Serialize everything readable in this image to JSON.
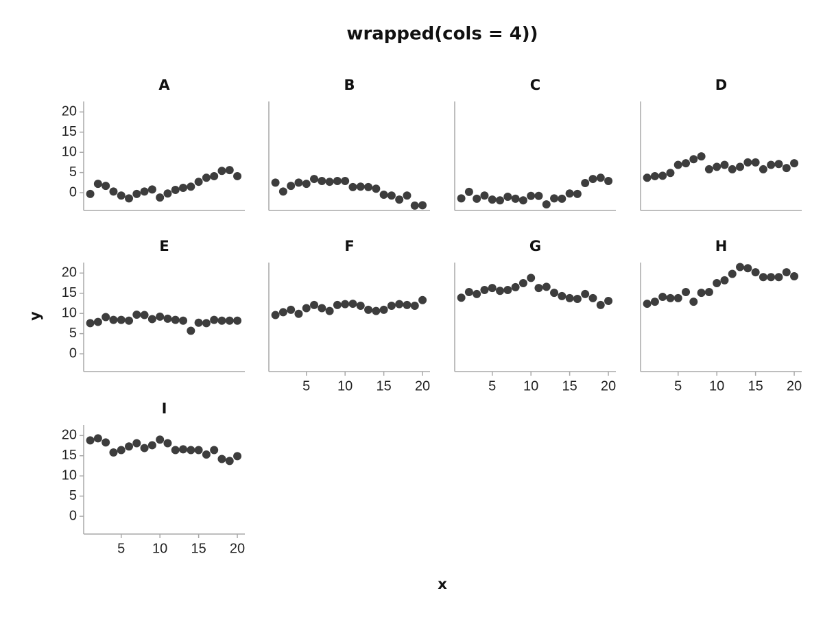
{
  "title": "wrapped(cols = 4))",
  "x_label": "x",
  "y_label": "y",
  "chart_data": [
    {
      "type": "scatter",
      "title": "A",
      "color": "#3d3d3d",
      "xlim": [
        0.15,
        20.97
      ],
      "ylim": [
        -4.4,
        22.6
      ],
      "yticks": [
        0,
        5,
        10,
        15,
        20
      ],
      "x": [
        1,
        2,
        3,
        4,
        5,
        6,
        7,
        8,
        9,
        10,
        11,
        12,
        13,
        14,
        15,
        16,
        17,
        18,
        19,
        20
      ],
      "values": [
        -0.3,
        2.2,
        1.7,
        0.3,
        -0.7,
        -1.4,
        -0.3,
        0.3,
        0.8,
        -1.2,
        -0.2,
        0.7,
        1.2,
        1.5,
        2.7,
        3.7,
        4.1,
        5.4,
        5.6,
        4.1
      ]
    },
    {
      "type": "scatter",
      "title": "B",
      "color": "#3d3d3d",
      "xlim": [
        0.15,
        20.97
      ],
      "ylim": [
        -4.4,
        22.6
      ],
      "x": [
        1,
        2,
        3,
        4,
        5,
        6,
        7,
        8,
        9,
        10,
        11,
        12,
        13,
        14,
        15,
        16,
        17,
        18,
        19,
        20
      ],
      "values": [
        2.5,
        0.3,
        1.7,
        2.5,
        2.2,
        3.4,
        2.9,
        2.7,
        2.9,
        2.9,
        1.4,
        1.5,
        1.4,
        1.0,
        -0.5,
        -0.7,
        -1.7,
        -0.7,
        -3.2,
        -3.1
      ]
    },
    {
      "type": "scatter",
      "title": "C",
      "color": "#3d3d3d",
      "xlim": [
        0.15,
        20.97
      ],
      "ylim": [
        -4.4,
        22.6
      ],
      "x": [
        1,
        2,
        3,
        4,
        5,
        6,
        7,
        8,
        9,
        10,
        11,
        12,
        13,
        14,
        15,
        16,
        17,
        18,
        19,
        20
      ],
      "values": [
        -1.4,
        0.2,
        -1.5,
        -0.7,
        -1.7,
        -1.9,
        -1.0,
        -1.5,
        -1.9,
        -0.8,
        -0.8,
        -2.9,
        -1.4,
        -1.5,
        -0.2,
        -0.3,
        2.4,
        3.4,
        3.7,
        2.9
      ]
    },
    {
      "type": "scatter",
      "title": "D",
      "color": "#3d3d3d",
      "xlim": [
        0.15,
        20.97
      ],
      "ylim": [
        -4.4,
        22.6
      ],
      "x": [
        1,
        2,
        3,
        4,
        5,
        6,
        7,
        8,
        9,
        10,
        11,
        12,
        13,
        14,
        15,
        16,
        17,
        18,
        19,
        20
      ],
      "values": [
        3.7,
        4.1,
        4.2,
        4.9,
        6.9,
        7.3,
        8.3,
        9.0,
        5.8,
        6.4,
        6.9,
        5.8,
        6.4,
        7.5,
        7.5,
        5.8,
        6.9,
        7.1,
        6.1,
        7.3
      ]
    },
    {
      "type": "scatter",
      "title": "E",
      "color": "#3d3d3d",
      "xlim": [
        0.15,
        20.97
      ],
      "ylim": [
        -4.4,
        22.6
      ],
      "yticks": [
        0,
        5,
        10,
        15,
        20
      ],
      "x": [
        1,
        2,
        3,
        4,
        5,
        6,
        7,
        8,
        9,
        10,
        11,
        12,
        13,
        14,
        15,
        16,
        17,
        18,
        19,
        20
      ],
      "values": [
        7.6,
        7.9,
        9.1,
        8.4,
        8.4,
        8.2,
        9.7,
        9.6,
        8.6,
        9.2,
        8.7,
        8.4,
        8.2,
        5.7,
        7.7,
        7.6,
        8.4,
        8.2,
        8.2,
        8.2
      ]
    },
    {
      "type": "scatter",
      "title": "F",
      "color": "#3d3d3d",
      "xlim": [
        0.15,
        20.97
      ],
      "ylim": [
        -4.4,
        22.6
      ],
      "xticks": [
        5,
        10,
        15,
        20
      ],
      "x": [
        1,
        2,
        3,
        4,
        5,
        6,
        7,
        8,
        9,
        10,
        11,
        12,
        13,
        14,
        15,
        16,
        17,
        18,
        19,
        20
      ],
      "values": [
        9.6,
        10.3,
        10.9,
        9.9,
        11.3,
        12.1,
        11.3,
        10.6,
        12.1,
        12.3,
        12.4,
        11.9,
        10.9,
        10.6,
        10.9,
        11.9,
        12.3,
        12.1,
        11.9,
        13.3
      ]
    },
    {
      "type": "scatter",
      "title": "G",
      "color": "#3d3d3d",
      "xlim": [
        0.15,
        20.97
      ],
      "ylim": [
        -4.4,
        22.6
      ],
      "xticks": [
        5,
        10,
        15,
        20
      ],
      "x": [
        1,
        2,
        3,
        4,
        5,
        6,
        7,
        8,
        9,
        10,
        11,
        12,
        13,
        14,
        15,
        16,
        17,
        18,
        19,
        20
      ],
      "values": [
        13.9,
        15.3,
        14.8,
        15.8,
        16.3,
        15.6,
        15.8,
        16.5,
        17.5,
        18.8,
        16.3,
        16.6,
        15.1,
        14.3,
        13.8,
        13.6,
        14.8,
        13.8,
        12.1,
        13.1
      ]
    },
    {
      "type": "scatter",
      "title": "H",
      "color": "#3d3d3d",
      "xlim": [
        0.15,
        20.97
      ],
      "ylim": [
        -4.4,
        22.6
      ],
      "xticks": [
        5,
        10,
        15,
        20
      ],
      "x": [
        1,
        2,
        3,
        4,
        5,
        6,
        7,
        8,
        9,
        10,
        11,
        12,
        13,
        14,
        15,
        16,
        17,
        18,
        19,
        20
      ],
      "values": [
        12.4,
        12.9,
        14.1,
        13.8,
        13.8,
        15.3,
        12.9,
        15.1,
        15.3,
        17.5,
        18.2,
        19.8,
        21.5,
        21.2,
        20.2,
        19.0,
        19.0,
        19.0,
        20.2,
        19.2
      ]
    },
    {
      "type": "scatter",
      "title": "I",
      "color": "#3d3d3d",
      "xlim": [
        0.15,
        20.97
      ],
      "ylim": [
        -4.4,
        22.6
      ],
      "yticks": [
        0,
        5,
        10,
        15,
        20
      ],
      "xticks": [
        5,
        10,
        15,
        20
      ],
      "x": [
        1,
        2,
        3,
        4,
        5,
        6,
        7,
        8,
        9,
        10,
        11,
        12,
        13,
        14,
        15,
        16,
        17,
        18,
        19,
        20
      ],
      "values": [
        18.8,
        19.3,
        18.3,
        15.8,
        16.4,
        17.3,
        18.1,
        16.9,
        17.6,
        19.0,
        18.1,
        16.4,
        16.6,
        16.4,
        16.4,
        15.3,
        16.4,
        14.2,
        13.7,
        14.9
      ]
    }
  ]
}
